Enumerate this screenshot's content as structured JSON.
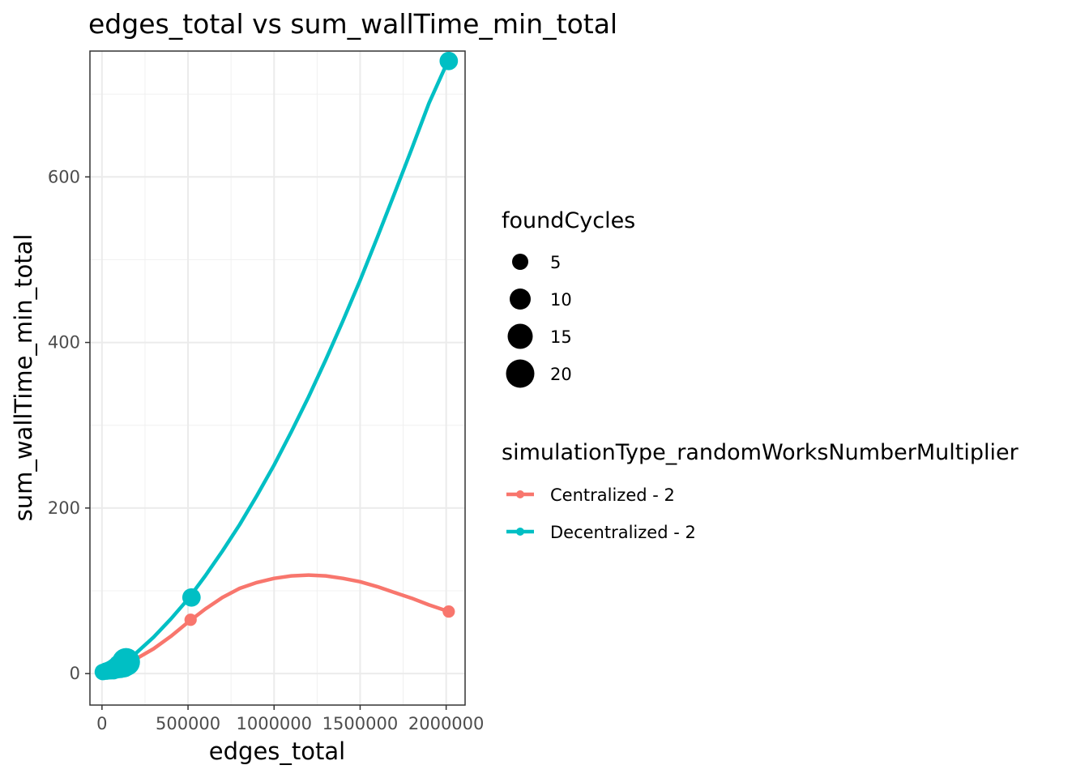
{
  "chart_data": {
    "type": "line",
    "title": "edges_total  vs  sum_wallTime_min_total",
    "xlabel": "edges_total",
    "ylabel": "sum_wallTime_min_total",
    "xlim": [
      -70000,
      2110000
    ],
    "ylim": [
      -38,
      752
    ],
    "x_ticks": [
      0,
      500000,
      1000000,
      1500000,
      2000000
    ],
    "x_tick_labels": [
      "0",
      "500000",
      "1000000",
      "1500000",
      "2000000"
    ],
    "y_ticks": [
      0,
      200,
      400,
      600
    ],
    "y_tick_labels": [
      "0",
      "200",
      "400",
      "600"
    ],
    "grid": true,
    "legend_position": "right",
    "size_legend": {
      "title": "foundCycles",
      "entries": [
        {
          "label": "5",
          "value": 5
        },
        {
          "label": "10",
          "value": 10
        },
        {
          "label": "15",
          "value": 15
        },
        {
          "label": "20",
          "value": 20
        }
      ]
    },
    "color_legend": {
      "title": "simulationType_randomWorksNumberMultiplier",
      "entries": [
        {
          "label": "Centralized - 2",
          "color": "#F8766D"
        },
        {
          "label": "Decentralized - 2",
          "color": "#00BFC4"
        }
      ]
    },
    "series": [
      {
        "name": "Centralized - 2",
        "color": "#F8766D",
        "points": [
          {
            "x": 5000,
            "y": 1,
            "size": 1
          },
          {
            "x": 30000,
            "y": 3,
            "size": 1
          },
          {
            "x": 60000,
            "y": 6,
            "size": 1
          },
          {
            "x": 90000,
            "y": 9,
            "size": 1
          },
          {
            "x": 120000,
            "y": 12,
            "size": 1
          },
          {
            "x": 140000,
            "y": 15,
            "size": 1
          },
          {
            "x": 515000,
            "y": 65,
            "size": 1
          },
          {
            "x": 2015000,
            "y": 75,
            "size": 1
          }
        ],
        "smooth": [
          {
            "x": 0,
            "y": 3
          },
          {
            "x": 100000,
            "y": 9
          },
          {
            "x": 200000,
            "y": 18
          },
          {
            "x": 300000,
            "y": 30
          },
          {
            "x": 400000,
            "y": 45
          },
          {
            "x": 500000,
            "y": 62
          },
          {
            "x": 600000,
            "y": 78
          },
          {
            "x": 700000,
            "y": 92
          },
          {
            "x": 800000,
            "y": 103
          },
          {
            "x": 900000,
            "y": 110
          },
          {
            "x": 1000000,
            "y": 115
          },
          {
            "x": 1100000,
            "y": 118
          },
          {
            "x": 1200000,
            "y": 119
          },
          {
            "x": 1300000,
            "y": 118
          },
          {
            "x": 1400000,
            "y": 115
          },
          {
            "x": 1500000,
            "y": 111
          },
          {
            "x": 1600000,
            "y": 105
          },
          {
            "x": 1700000,
            "y": 98
          },
          {
            "x": 1800000,
            "y": 91
          },
          {
            "x": 1900000,
            "y": 83
          },
          {
            "x": 2015000,
            "y": 75
          }
        ]
      },
      {
        "name": "Decentralized - 2",
        "color": "#00BFC4",
        "points": [
          {
            "x": 5000,
            "y": 2,
            "size": 4
          },
          {
            "x": 25000,
            "y": 3,
            "size": 5
          },
          {
            "x": 45000,
            "y": 4,
            "size": 6
          },
          {
            "x": 65000,
            "y": 5,
            "size": 8
          },
          {
            "x": 85000,
            "y": 7,
            "size": 10
          },
          {
            "x": 105000,
            "y": 9,
            "size": 14
          },
          {
            "x": 125000,
            "y": 11,
            "size": 18
          },
          {
            "x": 140000,
            "y": 14,
            "size": 22
          },
          {
            "x": 520000,
            "y": 92,
            "size": 6
          },
          {
            "x": 2015000,
            "y": 740,
            "size": 6
          }
        ],
        "smooth": [
          {
            "x": 0,
            "y": 0
          },
          {
            "x": 100000,
            "y": 8
          },
          {
            "x": 200000,
            "y": 25
          },
          {
            "x": 300000,
            "y": 44
          },
          {
            "x": 400000,
            "y": 66
          },
          {
            "x": 500000,
            "y": 90
          },
          {
            "x": 600000,
            "y": 118
          },
          {
            "x": 700000,
            "y": 148
          },
          {
            "x": 800000,
            "y": 180
          },
          {
            "x": 900000,
            "y": 215
          },
          {
            "x": 1000000,
            "y": 252
          },
          {
            "x": 1100000,
            "y": 292
          },
          {
            "x": 1200000,
            "y": 334
          },
          {
            "x": 1300000,
            "y": 379
          },
          {
            "x": 1400000,
            "y": 426
          },
          {
            "x": 1500000,
            "y": 475
          },
          {
            "x": 1600000,
            "y": 527
          },
          {
            "x": 1700000,
            "y": 580
          },
          {
            "x": 1800000,
            "y": 634
          },
          {
            "x": 1900000,
            "y": 689
          },
          {
            "x": 2015000,
            "y": 742
          }
        ]
      }
    ]
  }
}
